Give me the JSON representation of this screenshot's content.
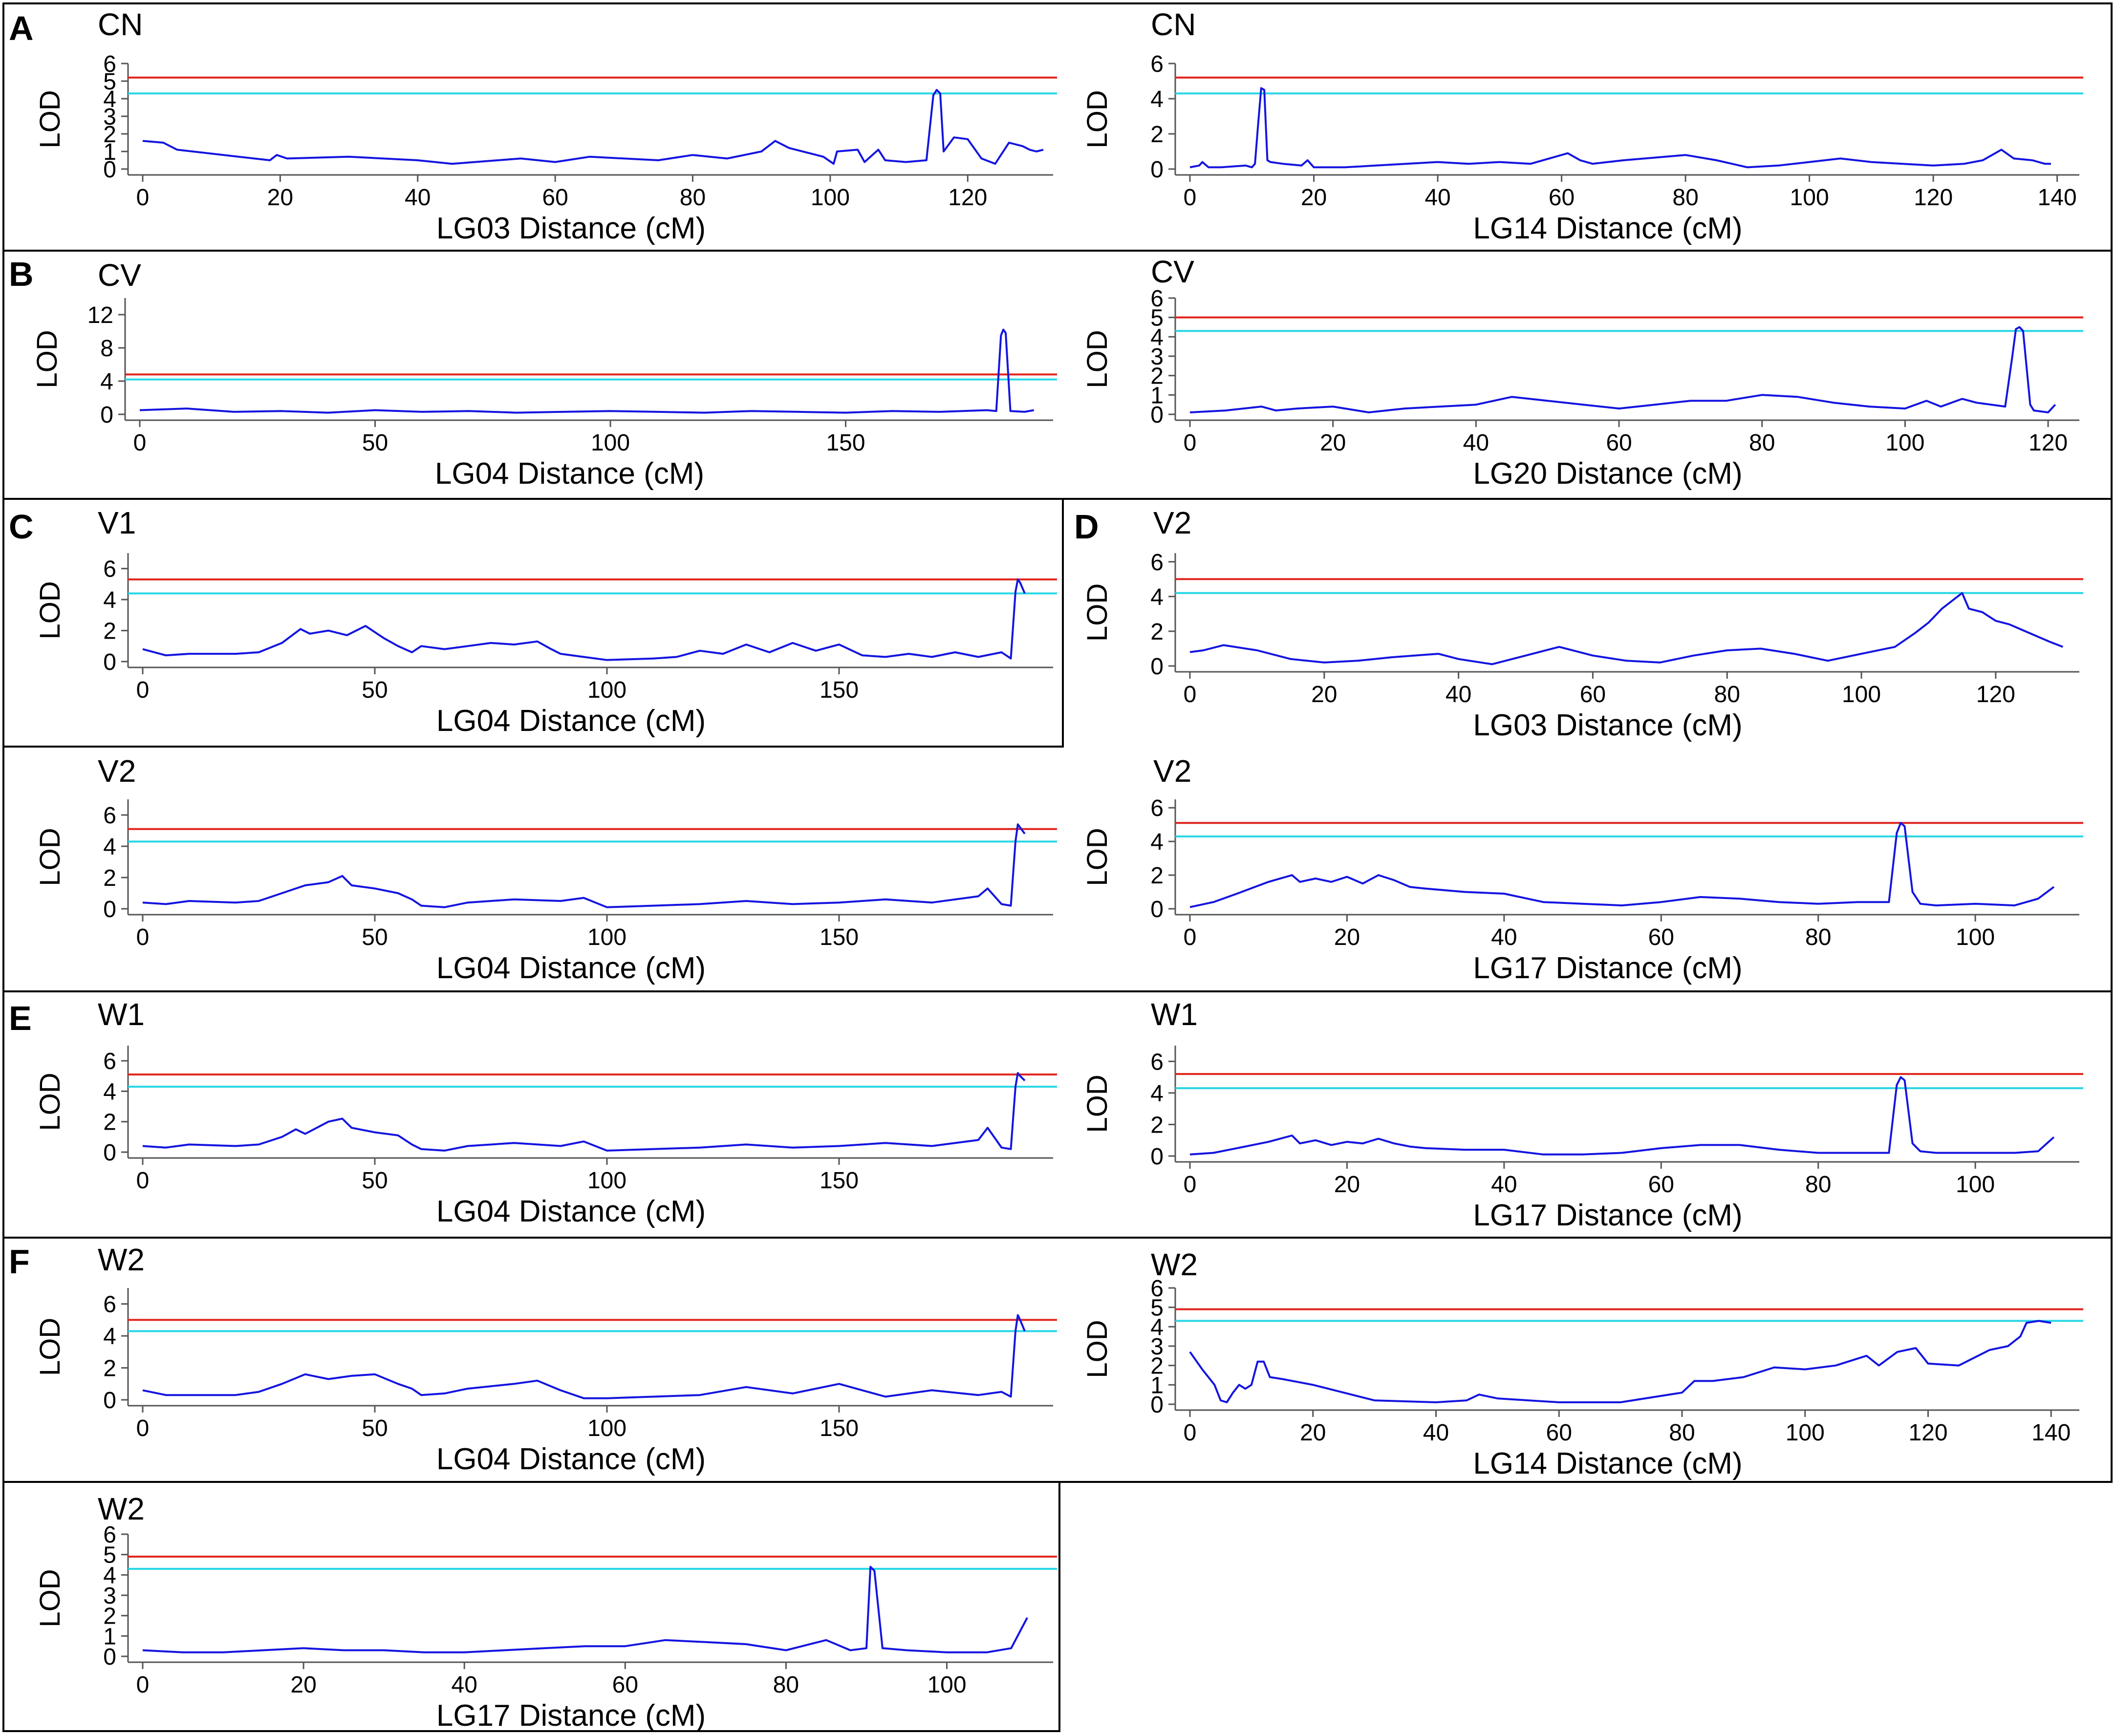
{
  "figure": {
    "colors": {
      "lod_curve": "#1414e0",
      "threshold_high": "#e0241e",
      "threshold_low": "#28d6e6",
      "axis": "#555555",
      "frame": "#000000"
    }
  },
  "chart_data": [
    {
      "panel_letter": "A",
      "type": "line",
      "title": "CN",
      "ylabel": "LOD",
      "xlabel": "LG03 Distance (cM)",
      "xlim": [
        0,
        131
      ],
      "xticks": [
        0,
        20,
        40,
        60,
        80,
        100,
        120
      ],
      "ylim": [
        0,
        6
      ],
      "yticks": [
        0,
        1,
        2,
        3,
        4,
        5,
        6
      ],
      "thresholds": [
        5.2,
        4.3
      ],
      "x": [
        0,
        3,
        5,
        18.5,
        19.5,
        21,
        30,
        40,
        45,
        55,
        60,
        65,
        75,
        80,
        85,
        90,
        92,
        94,
        97,
        99,
        100.5,
        101,
        104,
        105,
        107,
        108,
        111,
        114,
        115,
        115.5,
        116,
        116.5,
        118,
        120,
        122,
        124,
        126,
        128,
        129,
        130,
        131
      ],
      "y": [
        1.6,
        1.5,
        1.1,
        0.5,
        0.8,
        0.6,
        0.7,
        0.5,
        0.3,
        0.6,
        0.4,
        0.7,
        0.5,
        0.8,
        0.6,
        1.0,
        1.6,
        1.2,
        0.9,
        0.7,
        0.3,
        1.0,
        1.1,
        0.4,
        1.1,
        0.5,
        0.4,
        0.5,
        4.2,
        4.5,
        4.3,
        1.0,
        1.8,
        1.7,
        0.6,
        0.3,
        1.5,
        1.3,
        1.1,
        1.0,
        1.1
      ]
    },
    {
      "panel_letter": "",
      "type": "line",
      "title": "CN",
      "ylabel": "LOD",
      "xlabel": "LG14 Distance (cM)",
      "xlim": [
        0,
        142
      ],
      "xticks": [
        0,
        20,
        40,
        60,
        80,
        100,
        120,
        140
      ],
      "ylim": [
        0,
        6
      ],
      "yticks": [
        0,
        2,
        4,
        6
      ],
      "thresholds": [
        5.2,
        4.3
      ],
      "x": [
        0,
        1.5,
        2,
        3,
        5,
        9,
        10,
        10.5,
        11,
        11.5,
        12,
        12.5,
        13,
        15,
        18,
        19,
        20,
        25,
        30,
        40,
        45,
        50,
        55,
        61,
        63,
        65,
        70,
        80,
        85,
        90,
        95,
        100,
        105,
        110,
        115,
        120,
        125,
        128,
        131,
        133,
        136,
        138,
        139
      ],
      "y": [
        0.1,
        0.2,
        0.4,
        0.1,
        0.1,
        0.2,
        0.1,
        0.3,
        2.5,
        4.6,
        4.5,
        0.5,
        0.4,
        0.3,
        0.2,
        0.5,
        0.1,
        0.1,
        0.2,
        0.4,
        0.3,
        0.4,
        0.3,
        0.9,
        0.5,
        0.3,
        0.5,
        0.8,
        0.5,
        0.1,
        0.2,
        0.4,
        0.6,
        0.4,
        0.3,
        0.2,
        0.3,
        0.5,
        1.1,
        0.6,
        0.5,
        0.3,
        0.3
      ]
    },
    {
      "panel_letter": "B",
      "type": "line",
      "title": "CV",
      "ylabel": "LOD",
      "xlabel": "LG04 Distance (cM)",
      "xlim": [
        0,
        192
      ],
      "xticks": [
        0,
        50,
        100,
        150
      ],
      "ylim": [
        0,
        14
      ],
      "yticks": [
        0,
        4,
        8,
        12
      ],
      "thresholds": [
        4.8,
        4.2
      ],
      "x": [
        0,
        10,
        20,
        30,
        40,
        50,
        60,
        70,
        80,
        90,
        100,
        110,
        120,
        130,
        140,
        150,
        160,
        170,
        180,
        182,
        183,
        183.5,
        184,
        185,
        188,
        190
      ],
      "y": [
        0.5,
        0.7,
        0.3,
        0.4,
        0.2,
        0.5,
        0.3,
        0.4,
        0.2,
        0.3,
        0.4,
        0.3,
        0.2,
        0.4,
        0.3,
        0.2,
        0.4,
        0.3,
        0.5,
        0.4,
        9.5,
        10.2,
        9.8,
        0.4,
        0.3,
        0.5
      ]
    },
    {
      "panel_letter": "",
      "type": "line",
      "title": "CV",
      "ylabel": "LOD",
      "xlabel": "LG20 Distance (cM)",
      "xlim": [
        0,
        123
      ],
      "xticks": [
        0,
        20,
        40,
        60,
        80,
        100,
        120
      ],
      "ylim": [
        0,
        6
      ],
      "yticks": [
        0,
        1,
        2,
        3,
        4,
        5,
        6
      ],
      "thresholds": [
        5.0,
        4.3
      ],
      "x": [
        0,
        5,
        10,
        12,
        15,
        20,
        25,
        30,
        35,
        40,
        45,
        50,
        55,
        60,
        65,
        70,
        75,
        80,
        85,
        90,
        95,
        100,
        103,
        105,
        108,
        110,
        114,
        115,
        115.5,
        116,
        116.5,
        117.5,
        118,
        120,
        121
      ],
      "y": [
        0.1,
        0.2,
        0.4,
        0.2,
        0.3,
        0.4,
        0.1,
        0.3,
        0.4,
        0.5,
        0.9,
        0.7,
        0.5,
        0.3,
        0.5,
        0.7,
        0.7,
        1.0,
        0.9,
        0.6,
        0.4,
        0.3,
        0.7,
        0.4,
        0.8,
        0.6,
        0.4,
        3.0,
        4.4,
        4.5,
        4.3,
        0.5,
        0.2,
        0.1,
        0.5
      ]
    },
    {
      "panel_letter": "C",
      "type": "line",
      "title": "V1",
      "ylabel": "LOD",
      "xlabel": "LG04 Distance (cM)",
      "xlim": [
        0,
        194
      ],
      "xticks": [
        0,
        50,
        100,
        150
      ],
      "ylim": [
        0,
        7
      ],
      "yticks": [
        0,
        2,
        4,
        6
      ],
      "thresholds": [
        5.3,
        4.4
      ],
      "x": [
        0,
        5,
        10,
        20,
        25,
        30,
        34,
        36,
        40,
        44,
        48,
        52,
        55,
        58,
        60,
        65,
        70,
        75,
        80,
        85,
        88,
        90,
        95,
        100,
        110,
        115,
        120,
        125,
        130,
        135,
        140,
        145,
        150,
        155,
        160,
        165,
        170,
        175,
        180,
        185,
        187,
        188,
        188.5,
        189,
        190
      ],
      "y": [
        0.8,
        0.4,
        0.5,
        0.5,
        0.6,
        1.2,
        2.1,
        1.8,
        2.0,
        1.7,
        2.3,
        1.5,
        1.0,
        0.6,
        1.0,
        0.8,
        1.0,
        1.2,
        1.1,
        1.3,
        0.8,
        0.5,
        0.3,
        0.1,
        0.2,
        0.3,
        0.7,
        0.5,
        1.1,
        0.6,
        1.2,
        0.7,
        1.1,
        0.4,
        0.3,
        0.5,
        0.3,
        0.6,
        0.3,
        0.6,
        0.2,
        4.5,
        5.3,
        5.1,
        4.4
      ]
    },
    {
      "panel_letter": "D",
      "type": "line",
      "title": "V2",
      "ylabel": "LOD",
      "xlabel": "LG03 Distance (cM)",
      "xlim": [
        0,
        131
      ],
      "xticks": [
        0,
        20,
        40,
        60,
        80,
        100,
        120
      ],
      "ylim": [
        0,
        6.5
      ],
      "yticks": [
        0,
        2,
        4,
        6
      ],
      "thresholds": [
        5.0,
        4.2
      ],
      "x": [
        0,
        2,
        5,
        10,
        15,
        20,
        25,
        30,
        37,
        40,
        45,
        50,
        55,
        60,
        65,
        70,
        75,
        80,
        85,
        90,
        95,
        100,
        105,
        108,
        110,
        112,
        115,
        116,
        118,
        120,
        122,
        125,
        128,
        130
      ],
      "y": [
        0.8,
        0.9,
        1.2,
        0.9,
        0.4,
        0.2,
        0.3,
        0.5,
        0.7,
        0.4,
        0.1,
        0.6,
        1.1,
        0.6,
        0.3,
        0.2,
        0.6,
        0.9,
        1.0,
        0.7,
        0.3,
        0.7,
        1.1,
        1.9,
        2.5,
        3.3,
        4.2,
        3.3,
        3.1,
        2.6,
        2.4,
        1.9,
        1.4,
        1.1
      ]
    },
    {
      "panel_letter": "",
      "type": "line",
      "title": "V2",
      "ylabel": "LOD",
      "xlabel": "LG04 Distance (cM)",
      "xlim": [
        0,
        194
      ],
      "xticks": [
        0,
        50,
        100,
        150
      ],
      "ylim": [
        0,
        7
      ],
      "yticks": [
        0,
        2,
        4,
        6
      ],
      "thresholds": [
        5.1,
        4.3
      ],
      "x": [
        0,
        5,
        10,
        20,
        25,
        30,
        35,
        40,
        43,
        45,
        50,
        55,
        58,
        60,
        65,
        70,
        80,
        90,
        95,
        100,
        110,
        120,
        130,
        140,
        150,
        160,
        170,
        180,
        182,
        185,
        187,
        188,
        188.5,
        189,
        190
      ],
      "y": [
        0.4,
        0.3,
        0.5,
        0.4,
        0.5,
        1.0,
        1.5,
        1.7,
        2.1,
        1.5,
        1.3,
        1.0,
        0.6,
        0.2,
        0.1,
        0.4,
        0.6,
        0.5,
        0.7,
        0.1,
        0.2,
        0.3,
        0.5,
        0.3,
        0.4,
        0.6,
        0.4,
        0.8,
        1.3,
        0.3,
        0.2,
        4.3,
        5.4,
        5.2,
        4.8
      ]
    },
    {
      "panel_letter": "",
      "type": "line",
      "title": "V2",
      "ylabel": "LOD",
      "xlabel": "LG17 Distance (cM)",
      "xlim": [
        0,
        112
      ],
      "xticks": [
        0,
        20,
        40,
        60,
        80,
        100
      ],
      "ylim": [
        0,
        6.5
      ],
      "yticks": [
        0,
        2,
        4,
        6
      ],
      "thresholds": [
        5.1,
        4.3
      ],
      "x": [
        0,
        3,
        6,
        10,
        13,
        14,
        16,
        18,
        20,
        22,
        24,
        26,
        28,
        30,
        35,
        40,
        45,
        50,
        55,
        60,
        65,
        70,
        75,
        80,
        85,
        89,
        90,
        90.5,
        91,
        92,
        93,
        95,
        100,
        105,
        108,
        110
      ],
      "y": [
        0.1,
        0.4,
        0.9,
        1.6,
        2.0,
        1.6,
        1.8,
        1.6,
        1.9,
        1.5,
        2.0,
        1.7,
        1.3,
        1.2,
        1.0,
        0.9,
        0.4,
        0.3,
        0.2,
        0.4,
        0.7,
        0.6,
        0.4,
        0.3,
        0.4,
        0.4,
        4.5,
        5.1,
        4.9,
        1.0,
        0.3,
        0.2,
        0.3,
        0.2,
        0.6,
        1.3
      ]
    },
    {
      "panel_letter": "E",
      "type": "line",
      "title": "W1",
      "ylabel": "LOD",
      "xlabel": "LG04 Distance (cM)",
      "xlim": [
        0,
        194
      ],
      "xticks": [
        0,
        50,
        100,
        150
      ],
      "ylim": [
        0,
        7
      ],
      "yticks": [
        0,
        2,
        4,
        6
      ],
      "thresholds": [
        5.1,
        4.3
      ],
      "x": [
        0,
        5,
        10,
        20,
        25,
        30,
        33,
        35,
        40,
        43,
        45,
        50,
        55,
        58,
        60,
        65,
        70,
        80,
        90,
        95,
        100,
        110,
        120,
        130,
        140,
        150,
        160,
        170,
        180,
        182,
        185,
        187,
        188,
        188.5,
        189,
        190
      ],
      "y": [
        0.4,
        0.3,
        0.5,
        0.4,
        0.5,
        1.0,
        1.5,
        1.2,
        2.0,
        2.2,
        1.6,
        1.3,
        1.1,
        0.5,
        0.2,
        0.1,
        0.4,
        0.6,
        0.4,
        0.7,
        0.1,
        0.2,
        0.3,
        0.5,
        0.3,
        0.4,
        0.6,
        0.4,
        0.8,
        1.6,
        0.3,
        0.2,
        4.3,
        5.2,
        5.0,
        4.7
      ]
    },
    {
      "panel_letter": "",
      "type": "line",
      "title": "W1",
      "ylabel": "LOD",
      "xlabel": "LG17 Distance (cM)",
      "xlim": [
        0,
        112
      ],
      "xticks": [
        0,
        20,
        40,
        60,
        80,
        100
      ],
      "ylim": [
        0,
        7
      ],
      "yticks": [
        0,
        2,
        4,
        6
      ],
      "thresholds": [
        5.2,
        4.3
      ],
      "x": [
        0,
        3,
        6,
        10,
        13,
        14,
        16,
        18,
        20,
        22,
        24,
        26,
        28,
        30,
        35,
        40,
        45,
        50,
        55,
        60,
        65,
        70,
        75,
        80,
        85,
        89,
        90,
        90.5,
        91,
        92,
        93,
        95,
        100,
        105,
        108,
        110
      ],
      "y": [
        0.1,
        0.2,
        0.5,
        0.9,
        1.3,
        0.8,
        1.0,
        0.7,
        0.9,
        0.8,
        1.1,
        0.8,
        0.6,
        0.5,
        0.4,
        0.4,
        0.1,
        0.1,
        0.2,
        0.5,
        0.7,
        0.7,
        0.4,
        0.2,
        0.2,
        0.2,
        4.5,
        5.0,
        4.8,
        0.8,
        0.3,
        0.2,
        0.2,
        0.2,
        0.3,
        1.2
      ]
    },
    {
      "panel_letter": "F",
      "type": "line",
      "title": "W2",
      "ylabel": "LOD",
      "xlabel": "LG04 Distance (cM)",
      "xlim": [
        0,
        194
      ],
      "xticks": [
        0,
        50,
        100,
        150
      ],
      "ylim": [
        0,
        7
      ],
      "yticks": [
        0,
        2,
        4,
        6
      ],
      "thresholds": [
        5.0,
        4.3
      ],
      "x": [
        0,
        5,
        10,
        20,
        25,
        30,
        35,
        40,
        45,
        50,
        55,
        58,
        60,
        65,
        70,
        80,
        85,
        90,
        95,
        100,
        110,
        120,
        130,
        140,
        150,
        160,
        170,
        180,
        185,
        187,
        188,
        188.5,
        189,
        190
      ],
      "y": [
        0.6,
        0.3,
        0.3,
        0.3,
        0.5,
        1.0,
        1.6,
        1.3,
        1.5,
        1.6,
        1.0,
        0.7,
        0.3,
        0.4,
        0.7,
        1.0,
        1.2,
        0.6,
        0.1,
        0.1,
        0.2,
        0.3,
        0.8,
        0.4,
        1.0,
        0.2,
        0.6,
        0.3,
        0.5,
        0.2,
        4.3,
        5.3,
        5.0,
        4.3
      ]
    },
    {
      "panel_letter": "",
      "type": "line",
      "title": "W2",
      "ylabel": "LOD",
      "xlabel": "LG14 Distance (cM)",
      "xlim": [
        0,
        143
      ],
      "xticks": [
        0,
        20,
        40,
        60,
        80,
        100,
        120,
        140
      ],
      "ylim": [
        0,
        6
      ],
      "yticks": [
        0,
        1,
        2,
        3,
        4,
        5,
        6
      ],
      "thresholds": [
        4.9,
        4.3
      ],
      "x": [
        0,
        2,
        4,
        5,
        6,
        7,
        8,
        9,
        10,
        11,
        12,
        13,
        15,
        20,
        25,
        30,
        40,
        45,
        47,
        50,
        60,
        70,
        80,
        82,
        85,
        90,
        95,
        100,
        105,
        110,
        112,
        115,
        118,
        120,
        125,
        130,
        133,
        135,
        136,
        138,
        140
      ],
      "y": [
        2.7,
        1.8,
        1.0,
        0.2,
        0.1,
        0.6,
        1.0,
        0.8,
        1.0,
        2.2,
        2.2,
        1.4,
        1.3,
        1.0,
        0.6,
        0.2,
        0.1,
        0.2,
        0.5,
        0.3,
        0.1,
        0.1,
        0.6,
        1.2,
        1.2,
        1.4,
        1.9,
        1.8,
        2.0,
        2.5,
        2.0,
        2.7,
        2.9,
        2.1,
        2.0,
        2.8,
        3.0,
        3.5,
        4.2,
        4.3,
        4.2
      ]
    },
    {
      "panel_letter": "",
      "type": "line",
      "title": "W2",
      "ylabel": "LOD",
      "xlabel": "LG17 Distance (cM)",
      "xlim": [
        0,
        112
      ],
      "xticks": [
        0,
        20,
        40,
        60,
        80,
        100
      ],
      "ylim": [
        0,
        6
      ],
      "yticks": [
        0,
        1,
        2,
        3,
        4,
        5,
        6
      ],
      "thresholds": [
        4.9,
        4.3
      ],
      "x": [
        0,
        5,
        10,
        15,
        20,
        25,
        30,
        35,
        40,
        45,
        50,
        55,
        60,
        65,
        70,
        75,
        80,
        85,
        88,
        90,
        90.5,
        91,
        92,
        95,
        100,
        105,
        108,
        110
      ],
      "y": [
        0.3,
        0.2,
        0.2,
        0.3,
        0.4,
        0.3,
        0.3,
        0.2,
        0.2,
        0.3,
        0.4,
        0.5,
        0.5,
        0.8,
        0.7,
        0.6,
        0.3,
        0.8,
        0.3,
        0.4,
        4.4,
        4.2,
        0.4,
        0.3,
        0.2,
        0.2,
        0.4,
        1.9
      ]
    }
  ]
}
